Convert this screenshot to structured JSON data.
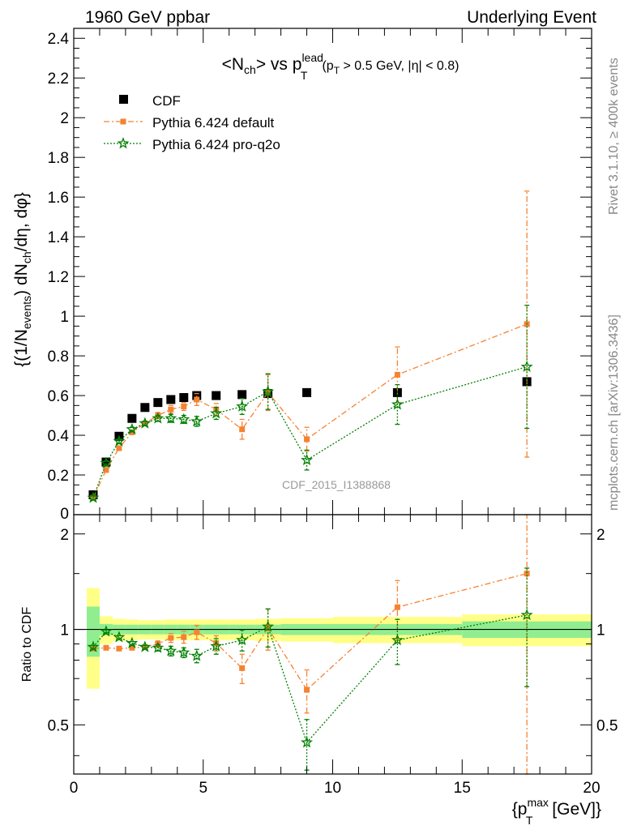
{
  "header": {
    "left": "1960 GeV ppbar",
    "right": "Underlying Event"
  },
  "side_labels": {
    "rivet": "Rivet 3.1.10, ≥ 400k events",
    "mcplots": "mcplots.cern.ch [arXiv:1306.3436]"
  },
  "watermark": "CDF_2015_I1388868",
  "chart_data": [
    {
      "type": "scatter",
      "title_parts": {
        "a": "<N",
        "a_sub": "ch",
        "b": "> vs p",
        "b_sup": "lead",
        "b_sub": "T",
        "c": "(p",
        "c_sub": "T",
        "d": " > 0.5 GeV, |η| < 0.8)"
      },
      "ylabel_parts": {
        "a": "{(1/N",
        "a_sub": "events",
        "b": ") dN",
        "b_sub": "ch",
        "c": "/dη, dφ}"
      },
      "xlim": [
        0,
        20
      ],
      "ylim": [
        0,
        2.45
      ],
      "yticks": [
        0.2,
        0.4,
        0.6,
        0.8,
        1,
        1.2,
        1.4,
        1.6,
        1.8,
        2,
        2.2,
        2.4
      ],
      "ytick_labels": [
        "0.2",
        "0.4",
        "0.6",
        "0.8",
        "1",
        "1.2",
        "1.4",
        "1.6",
        "1.8",
        "2",
        "2.2",
        "2.4"
      ],
      "ytick_zero_label": "0",
      "legend_placement": "top-left",
      "series": [
        {
          "name": "CDF",
          "color": "#000000",
          "marker": "square",
          "x": [
            0.75,
            1.25,
            1.75,
            2.25,
            2.75,
            3.25,
            3.75,
            4.25,
            4.75,
            5.5,
            6.5,
            7.5,
            9.0,
            12.5,
            17.5
          ],
          "y": [
            0.1,
            0.265,
            0.395,
            0.485,
            0.54,
            0.565,
            0.58,
            0.59,
            0.6,
            0.6,
            0.605,
            0.61,
            0.615,
            0.615,
            0.67
          ]
        },
        {
          "name": "Pythia 6.424 default",
          "color": "#f58231",
          "marker": "square-small",
          "x": [
            0.75,
            1.25,
            1.75,
            2.25,
            2.75,
            3.25,
            3.75,
            4.25,
            4.75,
            5.5,
            6.5,
            7.5,
            9.0,
            12.5,
            17.5
          ],
          "y": [
            0.085,
            0.225,
            0.335,
            0.415,
            0.46,
            0.5,
            0.53,
            0.545,
            0.58,
            0.53,
            0.43,
            0.615,
            0.38,
            0.705,
            0.96
          ],
          "yerr": [
            0.01,
            0.01,
            0.01,
            0.01,
            0.01,
            0.015,
            0.02,
            0.02,
            0.03,
            0.03,
            0.05,
            0.09,
            0.06,
            0.14,
            0.67
          ]
        },
        {
          "name": "Pythia 6.424 pro-q2o",
          "color": "#008000",
          "marker": "star",
          "x": [
            0.75,
            1.25,
            1.75,
            2.25,
            2.75,
            3.25,
            3.75,
            4.25,
            4.75,
            5.5,
            6.5,
            7.5,
            9.0,
            12.5,
            17.5
          ],
          "y": [
            0.085,
            0.26,
            0.37,
            0.43,
            0.46,
            0.485,
            0.485,
            0.48,
            0.47,
            0.51,
            0.545,
            0.62,
            0.275,
            0.555,
            0.745
          ],
          "yerr": [
            0.01,
            0.01,
            0.01,
            0.01,
            0.01,
            0.015,
            0.02,
            0.02,
            0.025,
            0.03,
            0.04,
            0.09,
            0.05,
            0.1,
            0.31
          ]
        }
      ]
    },
    {
      "type": "scatter",
      "ylabel": "Ratio to CDF",
      "xlabel_parts": {
        "a": "{p",
        "a_sup": "max",
        "a_sub": "T",
        "b": " [GeV]}"
      },
      "xlim": [
        0,
        20
      ],
      "ylim": [
        0.35,
        2.3
      ],
      "yticks": [
        0.5,
        1,
        2
      ],
      "ytick_labels": [
        "0.5",
        "1",
        "2"
      ],
      "xticks": [
        0,
        5,
        10,
        15,
        20
      ],
      "xtick_labels": [
        "0",
        "5",
        "10",
        "15",
        "20"
      ],
      "reference_line": 1,
      "band_colors": {
        "inner": "#90ee90",
        "outer": "#ffff88"
      },
      "bands": {
        "edges": [
          0.5,
          1.0,
          1.5,
          2.0,
          2.5,
          3.0,
          3.5,
          4.0,
          4.5,
          5.0,
          6.0,
          7.0,
          8.0,
          10.0,
          15.0,
          20.0
        ],
        "inner": [
          0.18,
          0.04,
          0.035,
          0.035,
          0.035,
          0.035,
          0.035,
          0.035,
          0.035,
          0.035,
          0.035,
          0.035,
          0.04,
          0.04,
          0.06
        ],
        "outer": [
          0.35,
          0.1,
          0.08,
          0.075,
          0.07,
          0.07,
          0.075,
          0.075,
          0.075,
          0.075,
          0.075,
          0.08,
          0.085,
          0.095,
          0.115
        ]
      },
      "series": [
        {
          "name": "Pythia 6.424 default",
          "color": "#f58231",
          "x": [
            0.75,
            1.25,
            1.75,
            2.25,
            2.75,
            3.25,
            3.75,
            4.25,
            4.75,
            5.5,
            6.5,
            7.5,
            9.0,
            12.5,
            17.5
          ],
          "y": [
            0.87,
            0.875,
            0.87,
            0.875,
            0.88,
            0.9,
            0.94,
            0.945,
            0.98,
            0.905,
            0.755,
            1.01,
            0.645,
            1.175,
            1.5
          ],
          "yerr": [
            0.01,
            0.01,
            0.01,
            0.01,
            0.01,
            0.02,
            0.03,
            0.04,
            0.05,
            0.05,
            0.08,
            0.15,
            0.1,
            0.25,
            1.2
          ]
        },
        {
          "name": "Pythia 6.424 pro-q2o",
          "color": "#008000",
          "x": [
            0.75,
            1.25,
            1.75,
            2.25,
            2.75,
            3.25,
            3.75,
            4.25,
            4.75,
            5.5,
            6.5,
            7.5,
            9.0,
            12.5,
            17.5
          ],
          "y": [
            0.88,
            0.985,
            0.945,
            0.905,
            0.88,
            0.875,
            0.855,
            0.845,
            0.825,
            0.885,
            0.925,
            1.02,
            0.44,
            0.925,
            1.11
          ],
          "yerr": [
            0.01,
            0.01,
            0.01,
            0.01,
            0.01,
            0.02,
            0.03,
            0.03,
            0.04,
            0.05,
            0.07,
            0.14,
            0.08,
            0.15,
            0.45
          ]
        }
      ]
    }
  ]
}
